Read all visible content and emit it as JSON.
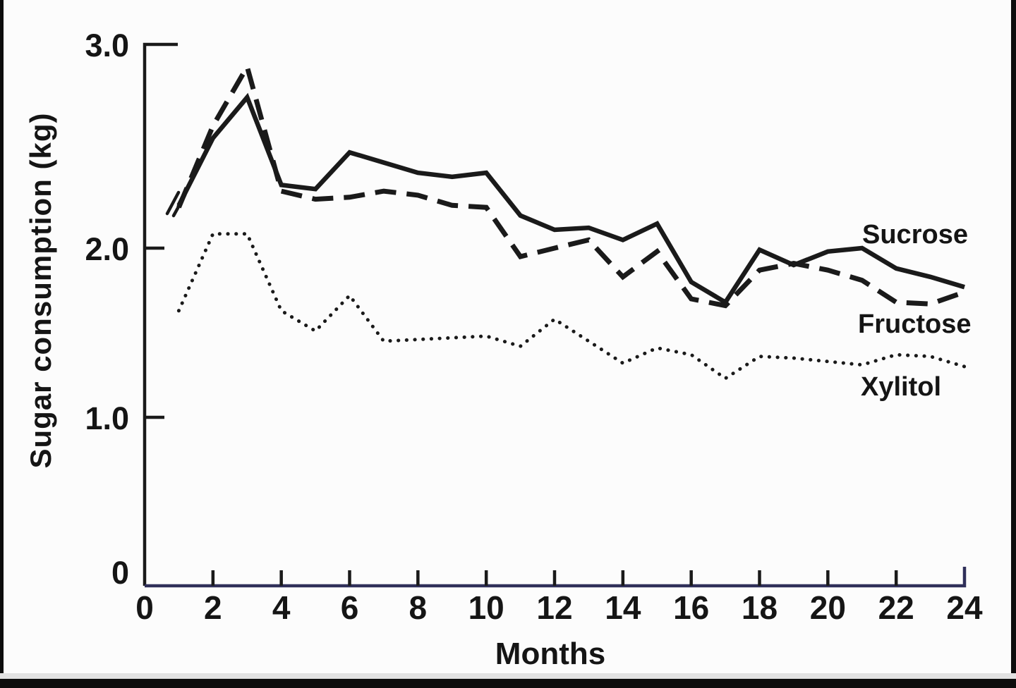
{
  "figure": {
    "background": "#fcfcfc",
    "ink_color": "#1a1a1a",
    "baseline_color": "#30305a",
    "text_color": "#151515"
  },
  "chart_data": {
    "type": "line",
    "title": "",
    "xlabel": "Months",
    "ylabel": "Sugar consumption (kg)",
    "xlim": [
      0,
      24
    ],
    "ylim": [
      0,
      3.0
    ],
    "grid": false,
    "legend_position": "inline-labels-right",
    "x_ticks": [
      0,
      2,
      4,
      6,
      8,
      10,
      12,
      14,
      16,
      18,
      20,
      22,
      24
    ],
    "y_ticks": [
      {
        "value": 0,
        "label": "0"
      },
      {
        "value": 1.0,
        "label": "1.0"
      },
      {
        "value": 2.0,
        "label": "2.0"
      },
      {
        "value": 3.0,
        "label": "3.0"
      }
    ],
    "x": [
      1,
      2,
      3,
      4,
      5,
      6,
      7,
      8,
      9,
      10,
      11,
      12,
      13,
      14,
      15,
      16,
      17,
      18,
      19,
      20,
      21,
      22,
      23,
      24
    ],
    "series": [
      {
        "name": "Sucrose",
        "style": "solid",
        "values": [
          2.21,
          2.54,
          2.74,
          2.31,
          2.29,
          2.47,
          2.42,
          2.37,
          2.35,
          2.37,
          2.16,
          2.09,
          2.1,
          2.04,
          2.12,
          1.8,
          1.68,
          1.99,
          1.9,
          1.98,
          2.0,
          1.88,
          1.83,
          1.77
        ]
      },
      {
        "name": "Fructose",
        "style": "dashed",
        "values": [
          2.2,
          2.6,
          2.89,
          2.28,
          2.24,
          2.25,
          2.28,
          2.26,
          2.21,
          2.2,
          1.95,
          2.0,
          2.04,
          1.83,
          1.98,
          1.7,
          1.66,
          1.87,
          1.91,
          1.87,
          1.81,
          1.68,
          1.67,
          1.74
        ]
      },
      {
        "name": "Xylitol",
        "style": "dotted",
        "values": [
          1.63,
          2.07,
          2.07,
          1.63,
          1.51,
          1.72,
          1.45,
          1.46,
          1.47,
          1.48,
          1.42,
          1.58,
          1.45,
          1.32,
          1.41,
          1.37,
          1.23,
          1.36,
          1.35,
          1.33,
          1.31,
          1.37,
          1.36,
          1.3
        ]
      }
    ],
    "annotations": {
      "axis_break_at_series_start": true
    }
  }
}
